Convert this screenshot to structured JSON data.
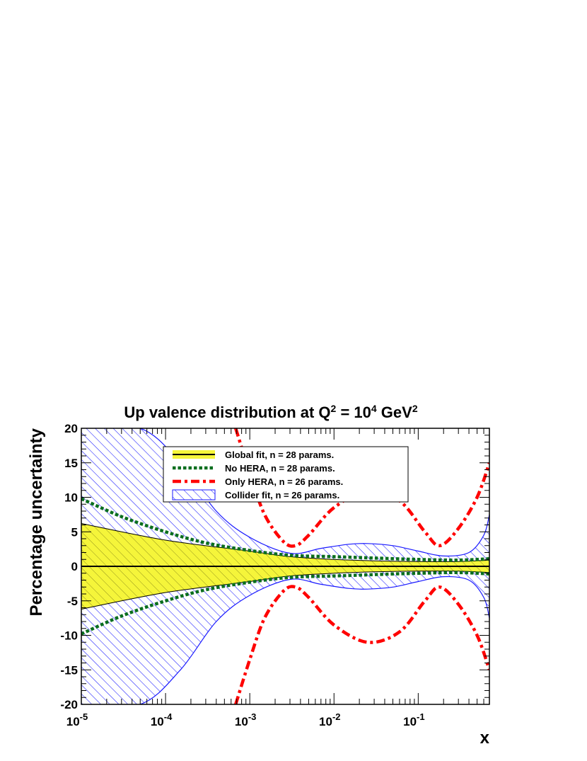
{
  "chart_data": {
    "type": "area",
    "title": {
      "main": "Up valence distribution at Q",
      "sup1": "2",
      "mid": " = 10",
      "sup2": "4",
      "unit": " GeV",
      "sup3": "2"
    },
    "xlabel": "x",
    "ylabel": "Percentage uncertainty",
    "x_scale": "log",
    "xlim": [
      1e-05,
      0.7
    ],
    "ylim": [
      -20,
      20
    ],
    "x_ticks": [
      {
        "base": "10",
        "exp": "-5"
      },
      {
        "base": "10",
        "exp": "-4"
      },
      {
        "base": "10",
        "exp": "-3"
      },
      {
        "base": "10",
        "exp": "-2"
      },
      {
        "base": "10",
        "exp": "-1"
      }
    ],
    "y_ticks": [
      "20",
      "15",
      "10",
      "5",
      "0",
      "-5",
      "-10",
      "-15",
      "-20"
    ],
    "legend_position": "top-center",
    "series": [
      {
        "name": "Global fit, n = 28 params.",
        "style": "band-yellow-hatched",
        "color": "#000000",
        "fill": "#f5f53a",
        "x": [
          1e-05,
          0.0001,
          0.001,
          0.003,
          0.01,
          0.03,
          0.1,
          0.3,
          0.7
        ],
        "upper": [
          6.2,
          3.8,
          2.2,
          1.4,
          1.0,
          0.8,
          0.7,
          0.7,
          0.9
        ],
        "lower": [
          -6.2,
          -3.8,
          -2.2,
          -1.4,
          -1.0,
          -0.8,
          -0.7,
          -0.7,
          -0.9
        ]
      },
      {
        "name": "No HERA, n = 28 params.",
        "style": "dotted",
        "color": "#0a6e1e",
        "x": [
          1e-05,
          3e-05,
          0.0001,
          0.0003,
          0.001,
          0.003,
          0.01,
          0.03,
          0.1,
          0.3,
          0.7
        ],
        "upper": [
          9.8,
          7.2,
          5.0,
          3.4,
          2.3,
          1.6,
          1.4,
          1.2,
          1.0,
          0.9,
          1.1
        ],
        "lower": [
          -9.8,
          -7.2,
          -5.0,
          -3.4,
          -2.3,
          -1.6,
          -1.4,
          -1.2,
          -1.0,
          -0.9,
          -1.1
        ]
      },
      {
        "name": "Only HERA, n = 26 params.",
        "style": "dash-dot",
        "color": "#ff0000",
        "x": [
          0.00068,
          0.001,
          0.0015,
          0.0025,
          0.0035,
          0.005,
          0.01,
          0.025,
          0.06,
          0.12,
          0.18,
          0.3,
          0.5,
          0.7
        ],
        "upper": [
          20,
          13.5,
          7.5,
          3.6,
          3.0,
          4.5,
          8.5,
          11.0,
          9.5,
          5.0,
          3.0,
          5.5,
          10.0,
          15.0
        ],
        "lower": [
          -20,
          -13.5,
          -7.5,
          -3.6,
          -3.0,
          -4.5,
          -8.5,
          -11.0,
          -9.5,
          -5.0,
          -3.0,
          -5.5,
          -10.0,
          -15.0
        ]
      },
      {
        "name": "Collider fit, n = 26 params.",
        "style": "band-blue-hatched",
        "color": "#1a1aff",
        "x": [
          1e-05,
          5e-05,
          0.00015,
          0.0004,
          0.001,
          0.003,
          0.007,
          0.015,
          0.025,
          0.05,
          0.1,
          0.2,
          0.4,
          0.6,
          0.7
        ],
        "upper": [
          20,
          20,
          15.0,
          8.0,
          4.2,
          1.9,
          2.6,
          3.2,
          3.3,
          3.0,
          2.2,
          1.5,
          2.0,
          4.5,
          7.5
        ],
        "lower": [
          -20,
          -20,
          -15.0,
          -8.0,
          -4.2,
          -1.9,
          -2.6,
          -3.2,
          -3.3,
          -3.0,
          -2.2,
          -1.5,
          -2.0,
          -4.5,
          -7.5
        ]
      }
    ]
  }
}
